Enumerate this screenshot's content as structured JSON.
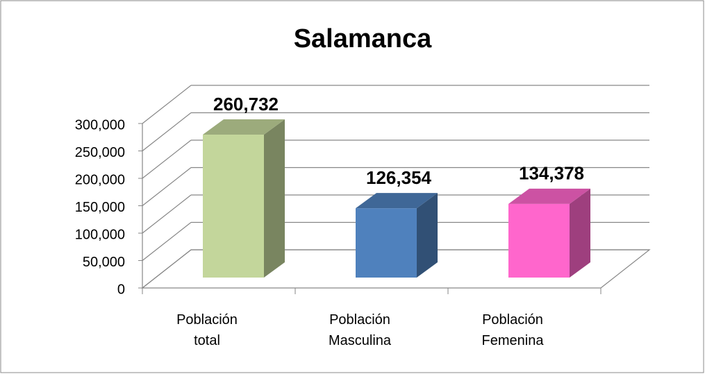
{
  "chart_data": {
    "type": "bar3d",
    "title": "Salamanca",
    "categories": [
      "Población total",
      "Población Masculina",
      "Población Femenina"
    ],
    "values": [
      260732,
      126354,
      134378
    ],
    "value_labels": [
      "260,732",
      "126,354",
      "134,378"
    ],
    "colors": [
      "#c3d69b",
      "#4f81bd",
      "#ff66cc"
    ],
    "ylim": [
      0,
      300000
    ],
    "yticks": [
      0,
      {
        "value": 50000,
        "label": "50,000"
      },
      {
        "value": 100000,
        "label": "100,000"
      },
      {
        "value": 150000,
        "label": "150,000"
      },
      {
        "value": 200000,
        "label": "200,000"
      },
      {
        "value": 250000,
        "label": "250,000"
      },
      {
        "value": 300000,
        "label": "300,000"
      }
    ],
    "grid": true
  }
}
